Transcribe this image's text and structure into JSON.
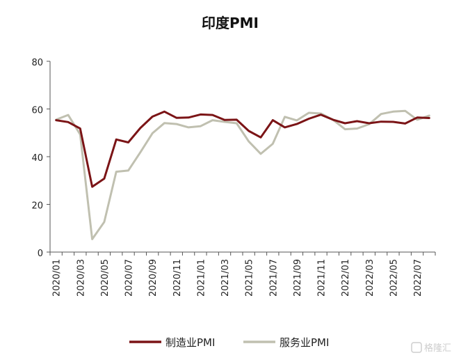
{
  "chart_data": {
    "type": "line",
    "title": "印度PMI",
    "xlabel": "",
    "ylabel": "",
    "ylim": [
      0,
      80
    ],
    "yticks": [
      0,
      20,
      40,
      60,
      80
    ],
    "x": [
      "2020/01",
      "2020/02",
      "2020/03",
      "2020/04",
      "2020/05",
      "2020/06",
      "2020/07",
      "2020/08",
      "2020/09",
      "2020/10",
      "2020/11",
      "2020/12",
      "2021/01",
      "2021/02",
      "2021/03",
      "2021/04",
      "2021/05",
      "2021/06",
      "2021/07",
      "2021/08",
      "2021/09",
      "2021/10",
      "2021/11",
      "2021/12",
      "2022/01",
      "2022/02",
      "2022/03",
      "2022/04",
      "2022/05",
      "2022/06",
      "2022/07",
      "2022/08"
    ],
    "xtick_labels": [
      "2020/01",
      "2020/03",
      "2020/05",
      "2020/07",
      "2020/09",
      "2020/11",
      "2021/01",
      "2021/03",
      "2021/05",
      "2021/07",
      "2021/09",
      "2021/11",
      "2022/01",
      "2022/03",
      "2022/05",
      "2022/07"
    ],
    "series": [
      {
        "name": "制造业PMI",
        "color": "#7b1416",
        "values": [
          55.3,
          54.5,
          51.8,
          27.4,
          30.8,
          47.2,
          46.0,
          52.0,
          56.8,
          58.9,
          56.3,
          56.4,
          57.7,
          57.5,
          55.4,
          55.5,
          50.8,
          48.1,
          55.3,
          52.3,
          53.7,
          55.9,
          57.6,
          55.5,
          54.0,
          54.9,
          54.0,
          54.7,
          54.6,
          53.9,
          56.4,
          56.2
        ]
      },
      {
        "name": "服务业PMI",
        "color": "#c0c0b0",
        "values": [
          55.5,
          57.5,
          49.3,
          5.4,
          12.6,
          33.7,
          34.2,
          41.8,
          49.8,
          54.1,
          53.7,
          52.3,
          52.8,
          55.3,
          54.6,
          54.0,
          46.4,
          41.2,
          45.4,
          56.7,
          55.2,
          58.4,
          58.1,
          55.5,
          51.5,
          51.8,
          53.6,
          57.9,
          58.9,
          59.2,
          55.5,
          57.2
        ]
      }
    ],
    "legend_position": "bottom-center",
    "grid": false
  },
  "watermark": "格隆汇"
}
